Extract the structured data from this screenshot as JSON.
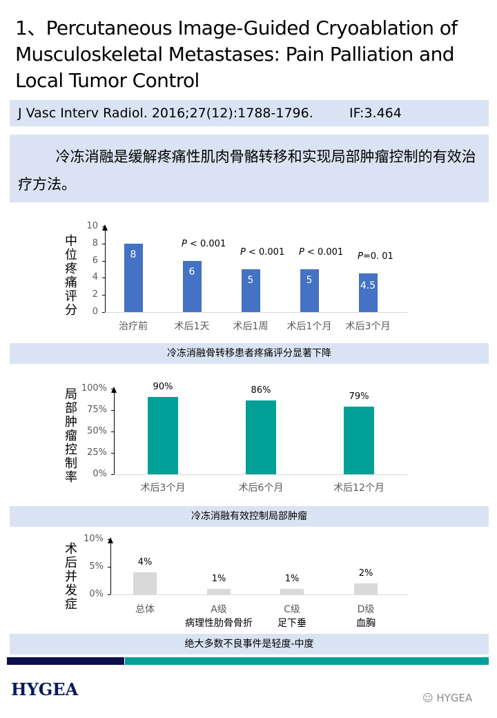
{
  "title": "1、Percutaneous Image-Guided Cryoablation of Musculoskeletal Metastases: Pain Palliation and Local Tumor Control",
  "citation": {
    "journal": "J Vasc Interv Radiol. 2016;27(12):1788-1796.",
    "impact_factor": "IF:3.464"
  },
  "summary": "冷冻消融是缓解疼痛性肌肉骨骼转移和实现局部肿瘤控制的有效治疗方法。",
  "chart_data": [
    {
      "type": "bar",
      "ylabel": "中位疼痛评分",
      "ylim": [
        0,
        10
      ],
      "yticks": [
        "0",
        "2",
        "4",
        "6",
        "8",
        "10"
      ],
      "categories": [
        "治疗前",
        "术后1天",
        "术后1周",
        "术后1个月",
        "术后3个月"
      ],
      "values": [
        8,
        6,
        5,
        5,
        4.5
      ],
      "data_labels": [
        "8",
        "6",
        "5",
        "5",
        "4.5"
      ],
      "annotations": [
        "",
        "P < 0.001",
        "P < 0.001",
        "P < 0.001",
        "P=0. 01"
      ],
      "color": "#4472c4",
      "caption": "冷冻消融骨转移患者疼痛评分显著下降"
    },
    {
      "type": "bar",
      "ylabel": "局部肿瘤控制率",
      "ylim": [
        0,
        100
      ],
      "yticks": [
        "0%",
        "25%",
        "50%",
        "75%",
        "100%"
      ],
      "categories": [
        "术后3个月",
        "术后6个月",
        "术后12个月"
      ],
      "values": [
        90,
        86,
        79
      ],
      "data_labels": [
        "90%",
        "86%",
        "79%"
      ],
      "color": "#00a096",
      "caption": "冷冻消融有效控制局部肿瘤"
    },
    {
      "type": "bar",
      "ylabel": "术后并发症",
      "ylim": [
        0,
        10
      ],
      "yticks": [
        "0%",
        "5%",
        "10%"
      ],
      "categories": [
        "总体",
        "A级",
        "C级",
        "D级"
      ],
      "subcategories": [
        "",
        "病理性肋骨骨折",
        "足下垂",
        "血胸"
      ],
      "values": [
        4,
        1,
        1,
        2
      ],
      "data_labels": [
        "4%",
        "1%",
        "1%",
        "2%"
      ],
      "color": "#d9d9d9",
      "caption": "绝大多数不良事件是轻度-中度"
    }
  ],
  "footer": {
    "logo": "HYGEA",
    "watermark": "HYGEA"
  }
}
